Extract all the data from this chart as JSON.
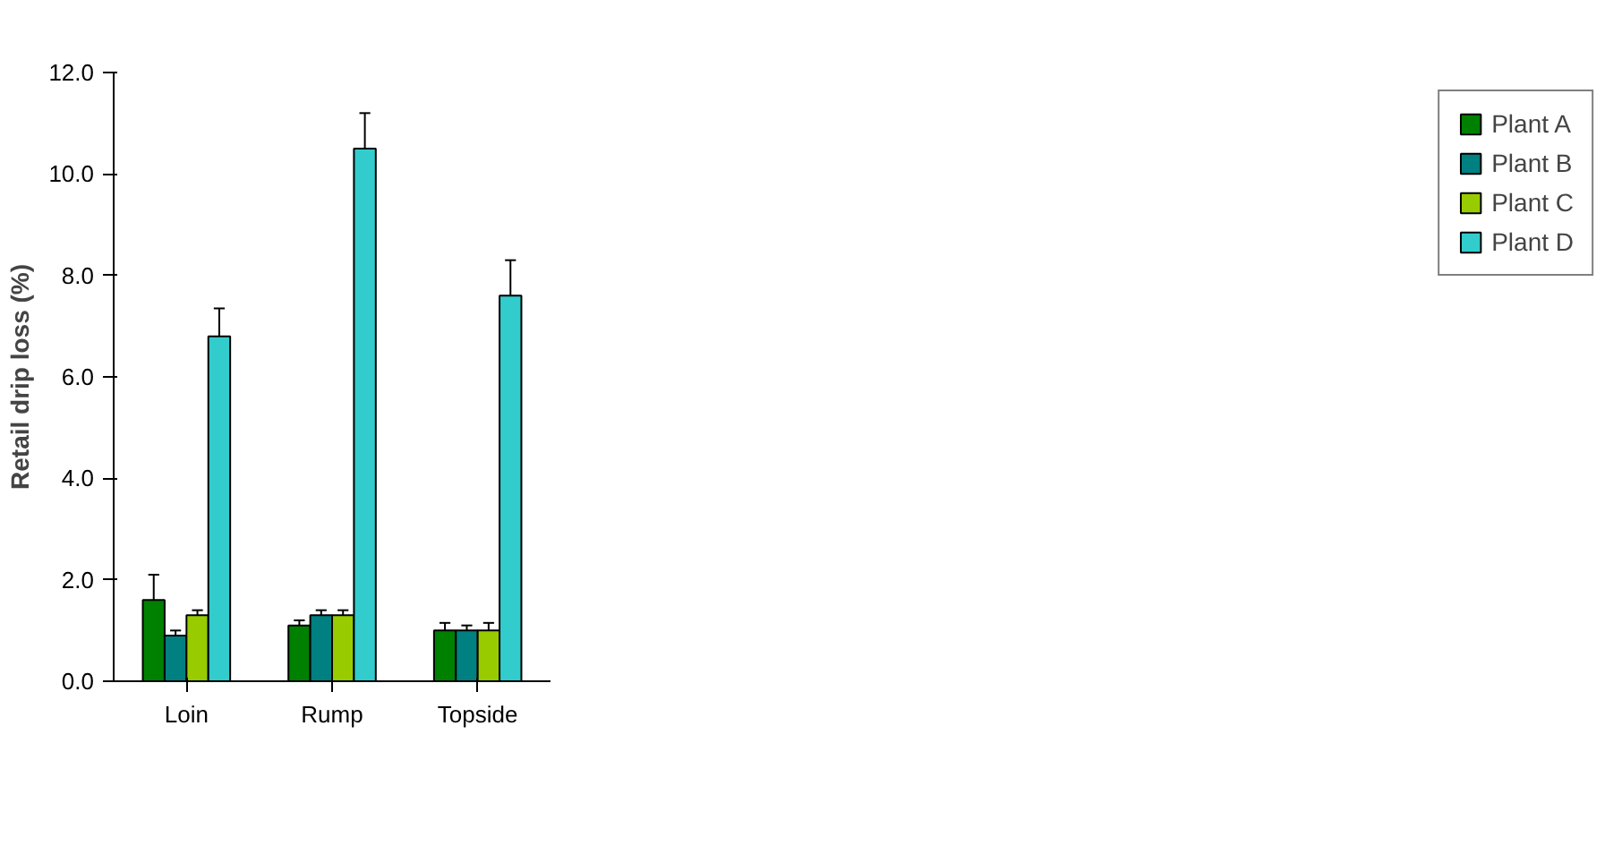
{
  "chart_data": {
    "type": "bar",
    "ylabel": "Retail drip loss (%)",
    "categories": [
      "Loin",
      "Rump",
      "Topside"
    ],
    "series": [
      {
        "name": "Plant A",
        "color": "#008000",
        "values": [
          1.6,
          1.1,
          1.0
        ],
        "errors": [
          [
            1.6,
            2.1
          ],
          [
            1.1,
            1.2
          ],
          [
            1.0,
            1.15
          ]
        ]
      },
      {
        "name": "Plant B",
        "color": "#008080",
        "values": [
          0.9,
          1.3,
          1.0
        ],
        "errors": [
          [
            0.9,
            1.0
          ],
          [
            1.3,
            1.4
          ],
          [
            1.0,
            1.1
          ]
        ]
      },
      {
        "name": "Plant C",
        "color": "#99cc00",
        "values": [
          1.3,
          1.3,
          1.0
        ],
        "errors": [
          [
            1.3,
            1.4
          ],
          [
            1.3,
            1.4
          ],
          [
            1.0,
            1.15
          ]
        ]
      },
      {
        "name": "Plant D",
        "color": "#33cccc",
        "values": [
          6.8,
          10.5,
          7.6
        ],
        "errors": [
          [
            6.8,
            7.35
          ],
          [
            10.5,
            11.2
          ],
          [
            7.6,
            8.3
          ]
        ]
      }
    ],
    "ylim": [
      0,
      12
    ],
    "yticks": [
      {
        "value": 0,
        "label": "0.0"
      },
      {
        "value": 2,
        "label": "2.0"
      },
      {
        "value": 4,
        "label": "4.0"
      },
      {
        "value": 6,
        "label": "6.0"
      },
      {
        "value": 8,
        "label": "8.0"
      },
      {
        "value": 10,
        "label": "10.0"
      },
      {
        "value": 12,
        "label": "12.0"
      }
    ],
    "grid": false,
    "legend": "right"
  }
}
